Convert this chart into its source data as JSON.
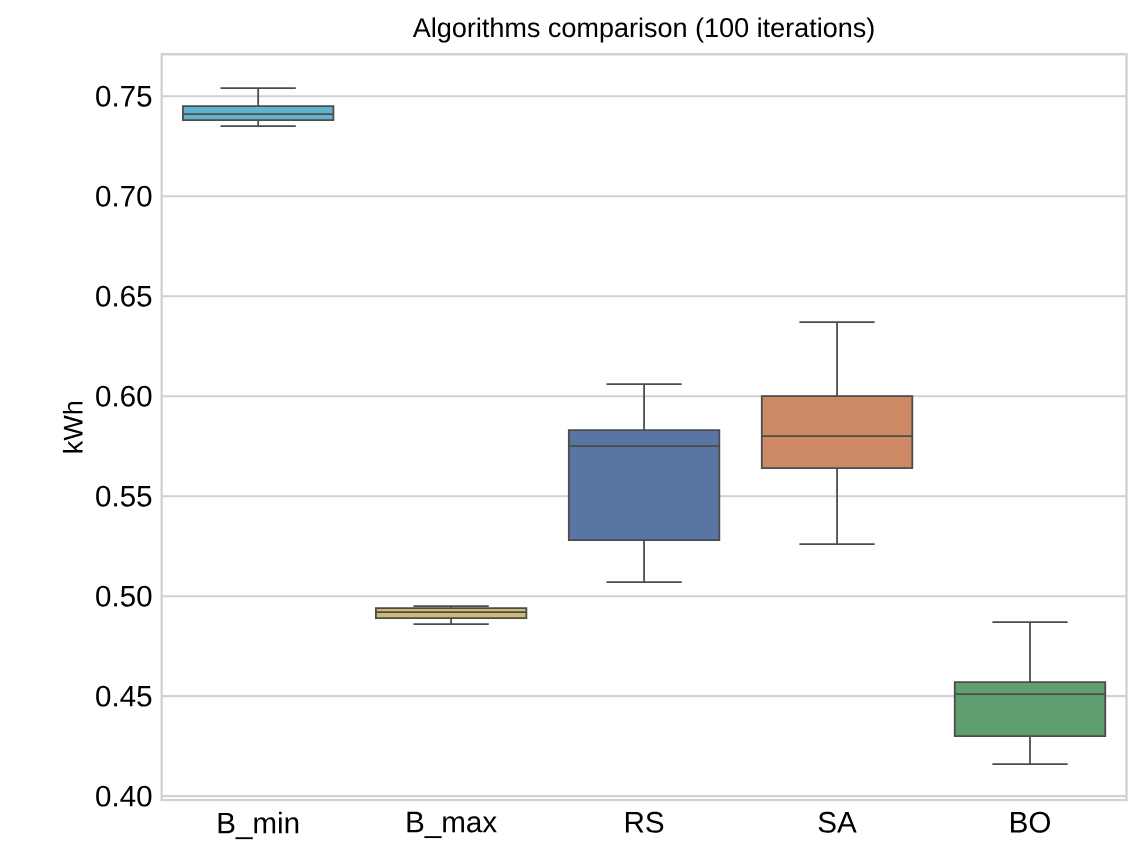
{
  "chart_data": {
    "type": "box",
    "title": "Algorithms comparison (100 iterations)",
    "ylabel": "kWh",
    "categories": [
      "B_min",
      "B_max",
      "RS",
      "SA",
      "BO"
    ],
    "boxes": [
      {
        "low": 0.735,
        "q1": 0.738,
        "median": 0.741,
        "q3": 0.745,
        "high": 0.754
      },
      {
        "low": 0.486,
        "q1": 0.489,
        "median": 0.492,
        "q3": 0.494,
        "high": 0.495
      },
      {
        "low": 0.507,
        "q1": 0.528,
        "median": 0.575,
        "q3": 0.583,
        "high": 0.606
      },
      {
        "low": 0.526,
        "q1": 0.564,
        "median": 0.58,
        "q3": 0.6,
        "high": 0.637
      },
      {
        "low": 0.416,
        "q1": 0.43,
        "median": 0.451,
        "q3": 0.457,
        "high": 0.487
      }
    ],
    "colors": [
      "#60b2cd",
      "#ccb974",
      "#5975a4",
      "#cc8963",
      "#5f9e6e"
    ],
    "ylim": [
      0.398,
      0.771
    ],
    "yticks": [
      {
        "value": 0.4,
        "label": "0.40"
      },
      {
        "value": 0.45,
        "label": "0.45"
      },
      {
        "value": 0.5,
        "label": "0.50"
      },
      {
        "value": 0.55,
        "label": "0.55"
      },
      {
        "value": 0.6,
        "label": "0.60"
      },
      {
        "value": 0.65,
        "label": "0.65"
      },
      {
        "value": 0.7,
        "label": "0.70"
      },
      {
        "value": 0.75,
        "label": "0.75"
      }
    ],
    "grid": "y"
  }
}
